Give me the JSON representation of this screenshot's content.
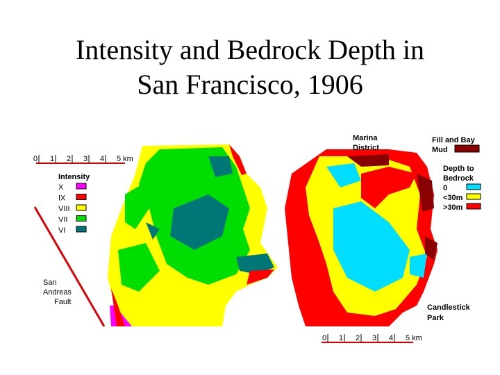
{
  "title": {
    "lines": [
      "Intensity and Bedrock Depth in",
      "San Francisco, 1906"
    ]
  },
  "left_map": {
    "scale": [
      "0",
      "1",
      "2",
      "3",
      "4",
      "5 km"
    ],
    "legend": {
      "title": "Intensity",
      "items": [
        {
          "label": "X",
          "color": "#ff00ff"
        },
        {
          "label": "IX",
          "color": "#ff0000"
        },
        {
          "label": "VIII",
          "color": "#ffff00"
        },
        {
          "label": "VII",
          "color": "#00dd00"
        },
        {
          "label": "VI",
          "color": "#007777"
        }
      ]
    },
    "fault_label": [
      "San",
      "Andreas",
      "Fault"
    ]
  },
  "right_map": {
    "marina_label": [
      "Marina",
      "District"
    ],
    "fill_label": [
      "Fill and Bay",
      "Mud"
    ],
    "fill_color": "#880000",
    "legend": {
      "title": [
        "Depth to",
        "Bedrock"
      ],
      "items": [
        {
          "label": "0",
          "color": "#00ddff"
        },
        {
          "label": "<30m",
          "color": "#ffff00"
        },
        {
          "label": ">30m",
          "color": "#ff0000"
        }
      ]
    },
    "candlestick_label": [
      "Candlestick",
      "Park"
    ],
    "scale": [
      "0",
      "1",
      "2",
      "3",
      "4",
      "5 km"
    ]
  }
}
